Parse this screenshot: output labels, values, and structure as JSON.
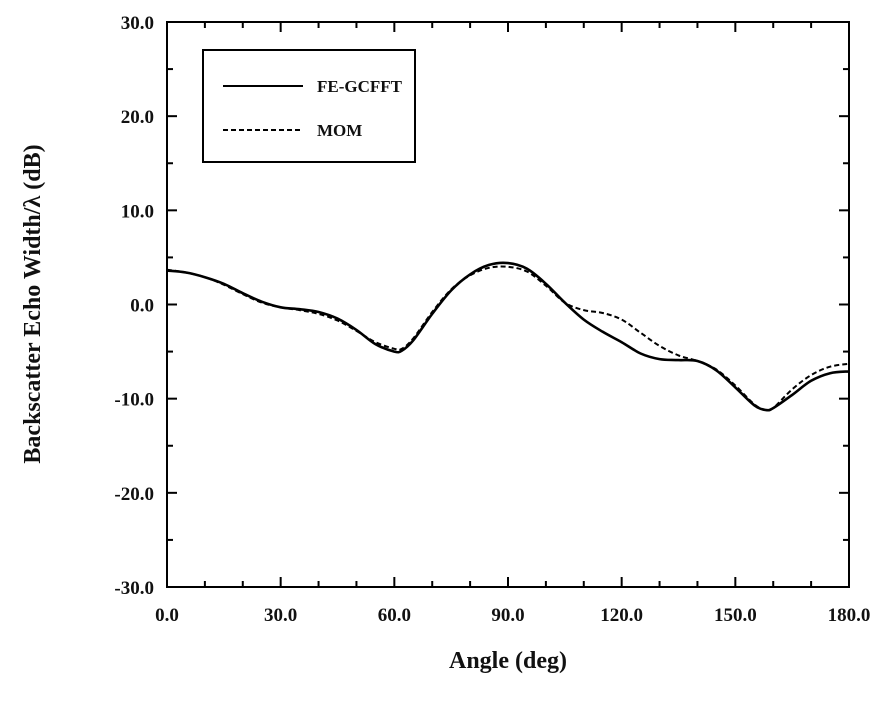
{
  "chart_data": {
    "type": "line",
    "title": "",
    "xlabel": "Angle (deg)",
    "ylabel": "Backscatter Echo Width/λ (dB)",
    "xlim": [
      0,
      180
    ],
    "ylim": [
      -30,
      30
    ],
    "xticks": [
      0,
      30,
      60,
      90,
      120,
      150,
      180
    ],
    "xtick_labels": [
      "0.0",
      "30.0",
      "60.0",
      "90.0",
      "120.0",
      "150.0",
      "180.0"
    ],
    "yticks": [
      -30,
      -20,
      -10,
      0,
      10,
      20,
      30
    ],
    "ytick_labels": [
      "-30.0",
      "-20.0",
      "-10.0",
      "0.0",
      "10.0",
      "20.0",
      "30.0"
    ],
    "grid": false,
    "legend_position": "top-left",
    "series": [
      {
        "name": "FE-GCFFT",
        "style": "solid",
        "color": "#000000",
        "x": [
          0,
          5,
          10,
          15,
          20,
          25,
          30,
          35,
          40,
          45,
          50,
          55,
          60,
          62,
          65,
          70,
          75,
          80,
          85,
          90,
          95,
          100,
          105,
          110,
          115,
          120,
          125,
          130,
          135,
          140,
          145,
          150,
          155,
          158,
          160,
          165,
          170,
          175,
          180
        ],
        "y": [
          3.6,
          3.4,
          2.9,
          2.2,
          1.2,
          0.3,
          -0.3,
          -0.5,
          -0.8,
          -1.5,
          -2.7,
          -4.2,
          -5.0,
          -4.9,
          -3.8,
          -1.0,
          1.5,
          3.2,
          4.2,
          4.4,
          3.8,
          2.2,
          0.2,
          -1.6,
          -2.9,
          -4.0,
          -5.2,
          -5.8,
          -5.9,
          -6.0,
          -7.0,
          -8.8,
          -10.7,
          -11.2,
          -11.0,
          -9.6,
          -8.1,
          -7.3,
          -7.1
        ]
      },
      {
        "name": "MOM",
        "style": "dashed",
        "color": "#000000",
        "x": [
          0,
          5,
          10,
          15,
          20,
          25,
          30,
          35,
          40,
          45,
          50,
          55,
          60,
          62,
          65,
          70,
          75,
          80,
          85,
          90,
          95,
          100,
          105,
          110,
          115,
          120,
          125,
          130,
          135,
          140,
          145,
          150,
          155,
          158,
          160,
          165,
          170,
          175,
          180
        ],
        "y": [
          3.7,
          3.4,
          2.9,
          2.1,
          1.1,
          0.2,
          -0.3,
          -0.6,
          -1.0,
          -1.7,
          -2.8,
          -4.0,
          -4.7,
          -4.7,
          -3.6,
          -0.8,
          1.6,
          3.1,
          3.9,
          4.0,
          3.5,
          2.0,
          0.2,
          -0.6,
          -0.9,
          -1.6,
          -3.0,
          -4.4,
          -5.4,
          -6.0,
          -6.9,
          -8.6,
          -10.6,
          -11.2,
          -11.0,
          -9.0,
          -7.5,
          -6.6,
          -6.3
        ]
      }
    ]
  }
}
